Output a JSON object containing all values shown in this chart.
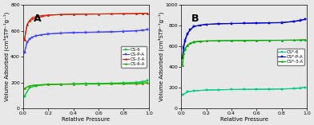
{
  "panel_A": {
    "label": "A",
    "ylim": [
      0,
      800
    ],
    "yticks": [
      0,
      200,
      400,
      600,
      800
    ],
    "ylabel": "Volume Adsorbed (cm³STP⁻¹g⁻¹)",
    "xlabel": "Relative Pressure",
    "series": [
      {
        "name": "CS-6",
        "color": "#00cc44",
        "marker": "s",
        "adsorption_x": [
          0.01,
          0.05,
          0.1,
          0.2,
          0.3,
          0.4,
          0.5,
          0.6,
          0.7,
          0.8,
          0.9,
          0.95,
          0.99
        ],
        "adsorption_y": [
          95,
          160,
          175,
          185,
          188,
          190,
          192,
          193,
          194,
          196,
          200,
          205,
          215
        ],
        "desorption_x": [
          0.99,
          0.95,
          0.9,
          0.8,
          0.7,
          0.6,
          0.5,
          0.4,
          0.3,
          0.2,
          0.1,
          0.05,
          0.01
        ],
        "desorption_y": [
          215,
          208,
          202,
          198,
          196,
          194,
          193,
          191,
          189,
          186,
          175,
          162,
          95
        ]
      },
      {
        "name": "CS-P-A",
        "color": "#4444ff",
        "marker": "s",
        "adsorption_x": [
          0.01,
          0.03,
          0.05,
          0.07,
          0.1,
          0.15,
          0.2,
          0.3,
          0.4,
          0.5,
          0.6,
          0.7,
          0.8,
          0.9,
          0.95,
          0.99
        ],
        "adsorption_y": [
          430,
          510,
          535,
          550,
          560,
          570,
          575,
          582,
          585,
          587,
          589,
          591,
          595,
          600,
          603,
          610
        ],
        "desorption_x": [
          0.99,
          0.95,
          0.9,
          0.8,
          0.7,
          0.6,
          0.5,
          0.4,
          0.3,
          0.2,
          0.1,
          0.05,
          0.03,
          0.01
        ],
        "desorption_y": [
          610,
          605,
          601,
          597,
          593,
          591,
          589,
          587,
          583,
          577,
          563,
          537,
          512,
          430
        ]
      },
      {
        "name": "CS-3-A",
        "color": "#cc2200",
        "marker": "^",
        "adsorption_x": [
          0.01,
          0.03,
          0.05,
          0.07,
          0.1,
          0.15,
          0.2,
          0.3,
          0.4,
          0.5,
          0.6,
          0.7,
          0.8,
          0.9,
          0.95,
          0.99
        ],
        "adsorption_y": [
          530,
          645,
          680,
          700,
          710,
          718,
          722,
          726,
          728,
          729,
          730,
          731,
          732,
          733,
          734,
          735
        ],
        "desorption_x": [
          0.99,
          0.95,
          0.9,
          0.8,
          0.7,
          0.6,
          0.5,
          0.4,
          0.3,
          0.2,
          0.1,
          0.05,
          0.03,
          0.01
        ],
        "desorption_y": [
          735,
          734,
          733,
          732,
          731,
          730,
          729,
          728,
          726,
          720,
          700,
          675,
          648,
          530
        ]
      },
      {
        "name": "CS-6-A",
        "color": "#33aa00",
        "marker": "^",
        "adsorption_x": [
          0.01,
          0.05,
          0.1,
          0.2,
          0.3,
          0.4,
          0.5,
          0.6,
          0.7,
          0.8,
          0.9,
          0.95,
          0.99
        ],
        "adsorption_y": [
          155,
          175,
          182,
          186,
          188,
          188,
          189,
          189,
          190,
          190,
          191,
          193,
          200
        ],
        "desorption_x": [
          0.99,
          0.95,
          0.9,
          0.8,
          0.7,
          0.6,
          0.5,
          0.4,
          0.3,
          0.2,
          0.1,
          0.05,
          0.01
        ],
        "desorption_y": [
          200,
          194,
          191,
          190,
          190,
          189,
          189,
          188,
          188,
          186,
          182,
          175,
          155
        ]
      }
    ]
  },
  "panel_B": {
    "label": "B",
    "ylim": [
      0,
      1000
    ],
    "yticks": [
      0,
      200,
      400,
      600,
      800,
      1000
    ],
    "ylabel": "Volume Adsorbed (cm³STP⁻¹g⁻¹)",
    "xlabel": "Relative Pressure",
    "series": [
      {
        "name": "CS*-6",
        "color": "#00cc88",
        "marker": "s",
        "adsorption_x": [
          0.01,
          0.05,
          0.1,
          0.2,
          0.3,
          0.4,
          0.5,
          0.6,
          0.7,
          0.8,
          0.9,
          0.95,
          0.99
        ],
        "adsorption_y": [
          130,
          160,
          170,
          178,
          181,
          183,
          184,
          185,
          186,
          188,
          192,
          197,
          205
        ],
        "desorption_x": [
          0.99,
          0.95,
          0.9,
          0.8,
          0.7,
          0.6,
          0.5,
          0.4,
          0.3,
          0.2,
          0.1,
          0.05,
          0.01
        ],
        "desorption_y": [
          205,
          199,
          193,
          189,
          187,
          186,
          185,
          184,
          181,
          178,
          170,
          161,
          130
        ]
      },
      {
        "name": "CS*-P-A",
        "color": "#0000cc",
        "marker": "s",
        "adsorption_x": [
          0.01,
          0.02,
          0.03,
          0.05,
          0.07,
          0.1,
          0.15,
          0.2,
          0.3,
          0.4,
          0.5,
          0.6,
          0.7,
          0.8,
          0.9,
          0.95,
          0.99
        ],
        "adsorption_y": [
          490,
          590,
          650,
          720,
          760,
          790,
          805,
          812,
          818,
          820,
          822,
          824,
          826,
          828,
          840,
          850,
          862
        ],
        "desorption_x": [
          0.99,
          0.95,
          0.9,
          0.8,
          0.7,
          0.6,
          0.5,
          0.4,
          0.3,
          0.2,
          0.1,
          0.05,
          0.03,
          0.02,
          0.01
        ],
        "desorption_y": [
          862,
          853,
          842,
          830,
          828,
          826,
          823,
          821,
          818,
          812,
          793,
          726,
          660,
          598,
          490
        ]
      },
      {
        "name": "CS*-3-A",
        "color": "#00aa00",
        "marker": "^",
        "adsorption_x": [
          0.01,
          0.02,
          0.03,
          0.05,
          0.07,
          0.1,
          0.15,
          0.2,
          0.3,
          0.4,
          0.5,
          0.6,
          0.7,
          0.8,
          0.9,
          0.95,
          0.99
        ],
        "adsorption_y": [
          420,
          530,
          570,
          610,
          630,
          645,
          650,
          652,
          654,
          655,
          656,
          657,
          658,
          659,
          660,
          661,
          663
        ],
        "desorption_x": [
          0.99,
          0.95,
          0.9,
          0.8,
          0.7,
          0.6,
          0.5,
          0.4,
          0.3,
          0.2,
          0.1,
          0.05,
          0.03,
          0.02,
          0.01
        ],
        "desorption_y": [
          663,
          661,
          660,
          659,
          658,
          657,
          656,
          655,
          654,
          652,
          640,
          612,
          575,
          535,
          420
        ]
      }
    ]
  },
  "bg_color": "#e8e8e8",
  "label_fontsize": 5,
  "tick_fontsize": 4.5,
  "legend_fontsize": 4,
  "marker_size": 1.5,
  "line_width": 0.8
}
